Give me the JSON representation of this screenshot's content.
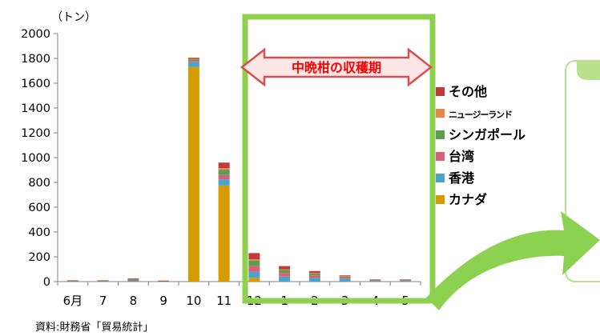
{
  "chart_data": {
    "type": "bar",
    "stacked": true,
    "unit_label": "（トン）",
    "categories": [
      "6月",
      "7",
      "8",
      "9",
      "10",
      "11",
      "12",
      "1",
      "2",
      "3",
      "4",
      "5"
    ],
    "yticks": [
      "2000",
      "1800",
      "1600",
      "1400",
      "1200",
      "1000",
      "800",
      "600",
      "400",
      "200",
      "0"
    ],
    "ylim": [
      0,
      2000
    ],
    "series": [
      {
        "name": "カナダ",
        "color": "#d69b00",
        "values": [
          0,
          0,
          0,
          0,
          1730,
          775,
          30,
          0,
          0,
          0,
          0,
          0
        ]
      },
      {
        "name": "香港",
        "color": "#4aa3c8",
        "values": [
          5,
          2,
          10,
          2,
          40,
          50,
          50,
          40,
          30,
          25,
          5,
          5
        ]
      },
      {
        "name": "台湾",
        "color": "#d9607a",
        "values": [
          0,
          2,
          3,
          2,
          10,
          35,
          45,
          30,
          20,
          10,
          4,
          4
        ]
      },
      {
        "name": "シンガポール",
        "color": "#5c9e50",
        "values": [
          3,
          1,
          5,
          1,
          10,
          40,
          45,
          25,
          15,
          8,
          3,
          3
        ]
      },
      {
        "name": "ニュージーランド",
        "color": "#e2894a",
        "values": [
          0,
          0,
          0,
          0,
          5,
          15,
          10,
          5,
          5,
          2,
          0,
          0
        ]
      },
      {
        "name": "その他",
        "color": "#c0393b",
        "values": [
          2,
          5,
          7,
          3,
          10,
          45,
          50,
          25,
          15,
          5,
          5,
          5
        ]
      }
    ]
  },
  "annotation": {
    "label": "中晩柑の収穫期",
    "arrow_fill": "#fde6e6",
    "arrow_stroke": "#d94f4f",
    "frame_color": "#8fd14f"
  },
  "source_text": "資料:財務省「貿易統計」"
}
